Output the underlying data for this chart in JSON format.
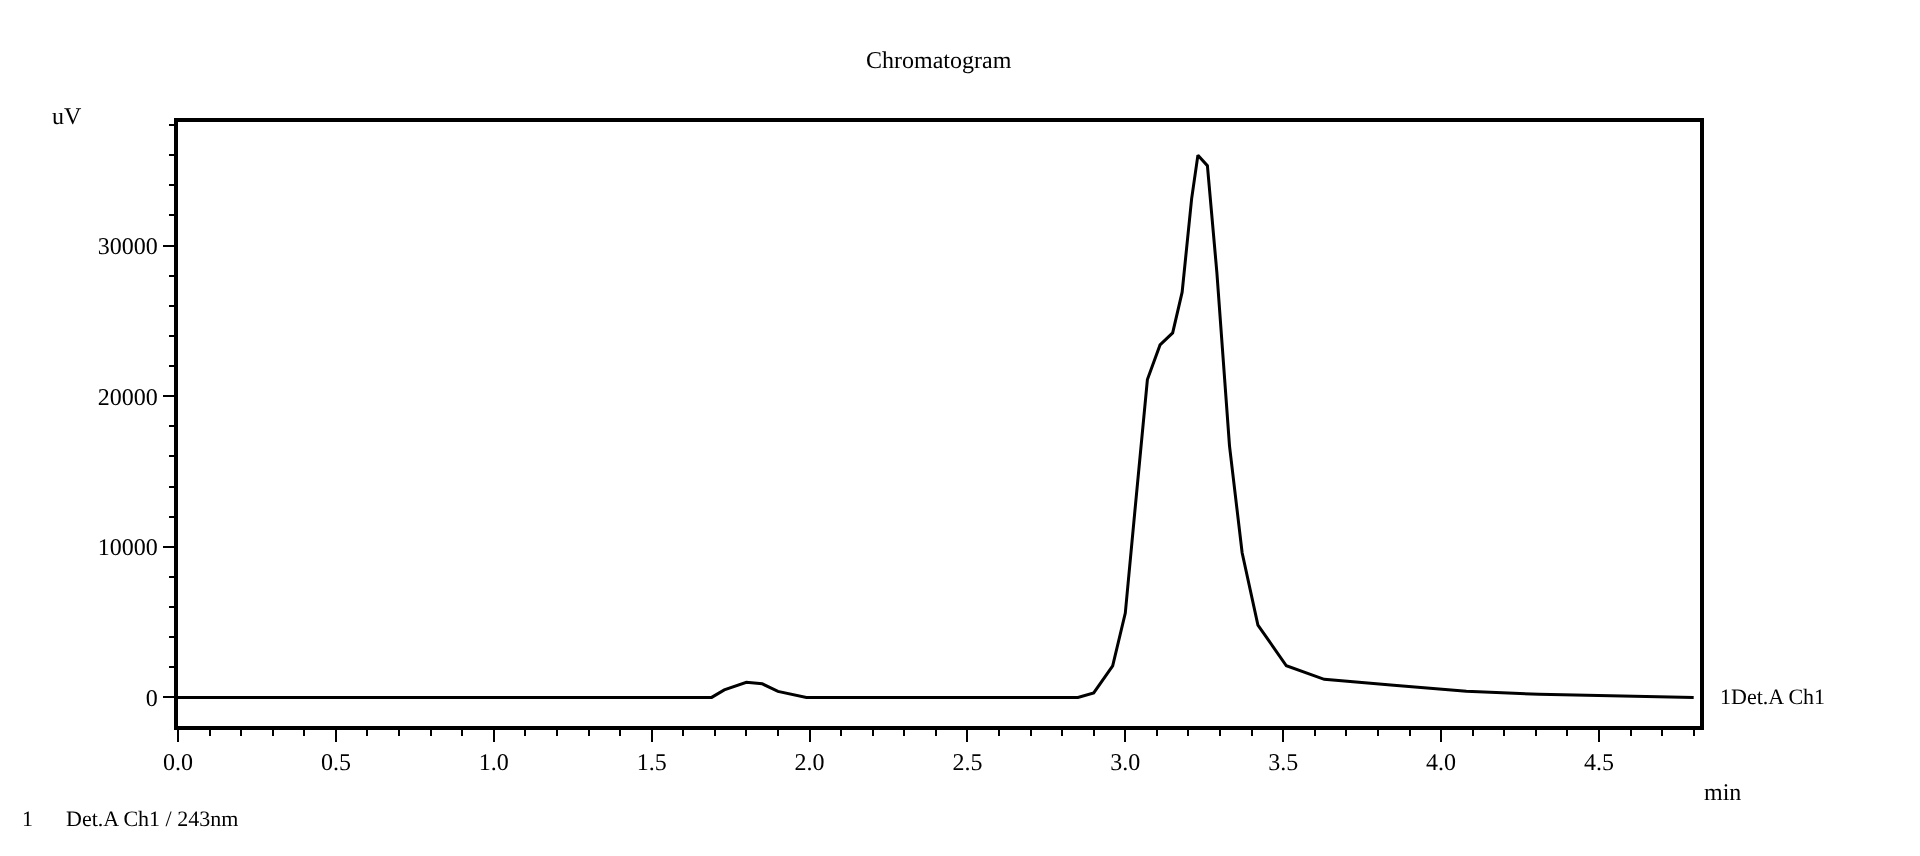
{
  "chart_data": {
    "type": "line",
    "title": "Chromatogram",
    "xlabel": "min",
    "ylabel": "uV",
    "annotations": [
      "1      Det.A Ch1 / 243nm"
    ],
    "x": [
      0,
      1.69,
      1.73,
      1.8,
      1.85,
      1.9,
      1.99,
      2.85,
      2.9,
      2.96,
      3.0,
      3.03,
      3.07,
      3.11,
      3.15,
      3.18,
      3.21,
      3.23,
      3.26,
      3.29,
      3.33,
      3.37,
      3.42,
      3.51,
      3.63,
      3.85,
      4.08,
      4.31,
      4.8
    ],
    "series": [
      {
        "name": "1Det.A Ch1",
        "color": "#000000",
        "values": [
          0,
          0,
          500,
          1000,
          900,
          400,
          0,
          0,
          300,
          2100,
          5600,
          12300,
          21100,
          23400,
          24200,
          26900,
          33100,
          36000,
          35300,
          28200,
          16700,
          9600,
          4800,
          2100,
          1200,
          800,
          400,
          200,
          0
        ]
      }
    ],
    "xlim": [
      0,
      4.82
    ],
    "ylim": [
      -1900,
      38200
    ],
    "xticks": [
      {
        "value": 0,
        "label": "0.0"
      },
      {
        "value": 0.5,
        "label": "0.5"
      },
      {
        "value": 1,
        "label": "1.0"
      },
      {
        "value": 1.5,
        "label": "1.5"
      },
      {
        "value": 2,
        "label": "2.0"
      },
      {
        "value": 2.5,
        "label": "2.5"
      },
      {
        "value": 3,
        "label": "3.0"
      },
      {
        "value": 3.5,
        "label": "3.5"
      },
      {
        "value": 4,
        "label": "4.0"
      },
      {
        "value": 4.5,
        "label": "4.5"
      }
    ],
    "yticks": [
      0,
      10000,
      20000,
      30000
    ],
    "grid": false,
    "legend": false,
    "marker": "none",
    "line_style": "solid"
  }
}
